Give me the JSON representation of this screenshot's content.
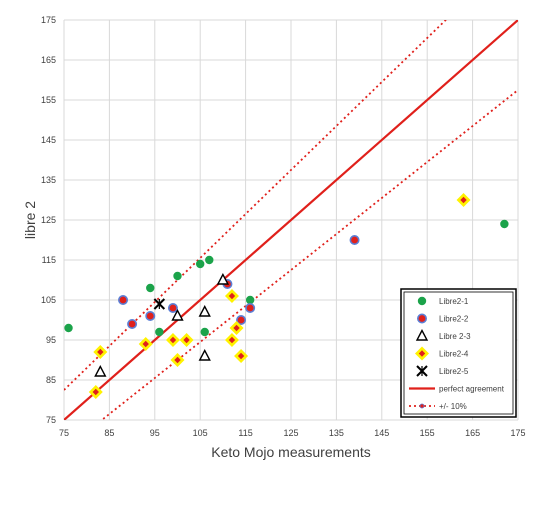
{
  "chart_data": {
    "type": "scatter",
    "title": "",
    "xlabel": "Keto Mojo measurements",
    "ylabel": "libre 2",
    "xlim": [
      75,
      175
    ],
    "ylim": [
      75,
      175
    ],
    "x_ticks": [
      75,
      85,
      95,
      105,
      115,
      125,
      135,
      145,
      155,
      165,
      175
    ],
    "y_ticks": [
      75,
      85,
      95,
      105,
      115,
      125,
      135,
      145,
      155,
      165,
      175
    ],
    "x_tick_labels": [
      "75",
      "85",
      "95",
      "105",
      "115",
      "125",
      "135",
      "145",
      "155",
      "165",
      "175"
    ],
    "y_tick_labels": [
      "75",
      "85",
      "95",
      "105",
      "115",
      "125",
      "135",
      "145",
      "155",
      "165",
      "175"
    ],
    "grid": "horizontal and vertical",
    "legend_position": "bottom-right",
    "series": [
      {
        "name": "Libre2-1",
        "marker": "circle",
        "color": "#1BA34A",
        "points": [
          [
            76,
            98
          ],
          [
            94,
            108
          ],
          [
            96,
            97
          ],
          [
            100,
            111
          ],
          [
            105,
            114
          ],
          [
            106,
            97
          ],
          [
            107,
            115
          ],
          [
            111,
            109
          ],
          [
            116,
            105
          ],
          [
            172,
            124
          ]
        ]
      },
      {
        "name": "Libre2-2",
        "marker": "red circle with blue outline",
        "color": "#E0201B",
        "stroke": "#5B7FD6",
        "points": [
          [
            88,
            105
          ],
          [
            90,
            99
          ],
          [
            94,
            101
          ],
          [
            99,
            103
          ],
          [
            111,
            109
          ],
          [
            114,
            100
          ],
          [
            116,
            103
          ],
          [
            139,
            120
          ]
        ]
      },
      {
        "name": "Libre 2-3",
        "marker": "triangle",
        "color": "#000000",
        "points": [
          [
            83,
            87
          ],
          [
            100,
            101
          ],
          [
            106,
            102
          ],
          [
            106,
            91
          ],
          [
            110,
            110
          ]
        ]
      },
      {
        "name": "Libre2-4",
        "marker": "yellow diamond with red center",
        "color": "#FFF200",
        "inner_color": "#E0201B",
        "points": [
          [
            82,
            82
          ],
          [
            83,
            92
          ],
          [
            93,
            94
          ],
          [
            99,
            95
          ],
          [
            102,
            95
          ],
          [
            112,
            106
          ],
          [
            112,
            95
          ],
          [
            113,
            98
          ],
          [
            114,
            91
          ],
          [
            163,
            130
          ],
          [
            100,
            90
          ]
        ]
      },
      {
        "name": "Libre2-5",
        "marker": "star cross",
        "color": "#000000",
        "points": [
          [
            96,
            104
          ]
        ]
      }
    ],
    "lines": [
      {
        "name": "perfect agreement",
        "style": "solid",
        "color": "#E0201B",
        "slope": 1.0
      },
      {
        "name": "+/- 10%",
        "style": "dotted",
        "color": "#E0201B",
        "slopes": [
          1.1,
          0.9
        ]
      }
    ]
  }
}
